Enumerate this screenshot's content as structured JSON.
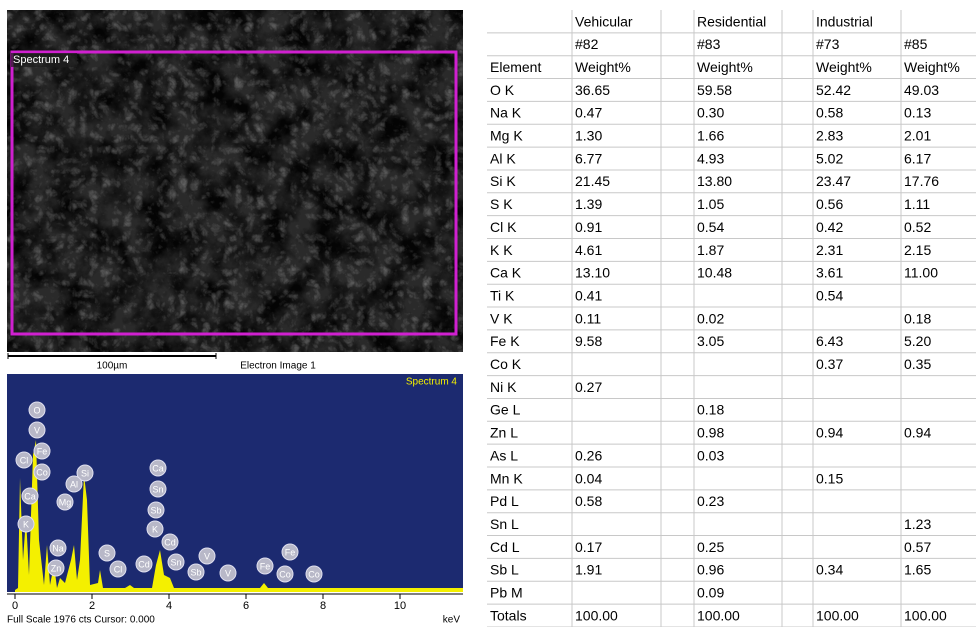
{
  "sem_image": {
    "label": "Spectrum 4",
    "scale_bar": "100µm",
    "caption": "Electron Image 1"
  },
  "spectrum": {
    "title": "Spectrum 4",
    "xticks": [
      0,
      2,
      4,
      6,
      8,
      10
    ],
    "x_unit": "keV",
    "status": "Full Scale 1976 cts Cursor: 0.000",
    "peak_labels": [
      "O",
      "V",
      "Fe",
      "Cl",
      "Co",
      "Ca",
      "Si",
      "Al",
      "K",
      "Mg",
      "Na",
      "Zn",
      "Ca",
      "Sn",
      "Sb",
      "K",
      "Cd",
      "S",
      "Cl",
      "Cd",
      "Sn",
      "Sb",
      "V",
      "V",
      "Fe",
      "Fe",
      "Co",
      "Co"
    ]
  },
  "table": {
    "element_header": "Element",
    "columns": [
      {
        "group": "Vehicular",
        "sample": "#82",
        "unit": "Weight%"
      },
      {
        "group": "Residential",
        "sample": "#83",
        "unit": "Weight%"
      },
      {
        "group": "Industrial",
        "sample": "#73",
        "unit": "Weight%"
      },
      {
        "sample": "#85",
        "unit": "Weight%"
      }
    ],
    "rows": [
      {
        "element": "O K",
        "values": [
          "36.65",
          "59.58",
          "52.42",
          "49.03"
        ]
      },
      {
        "element": "Na K",
        "values": [
          "0.47",
          "0.30",
          "0.58",
          "0.13"
        ]
      },
      {
        "element": "Mg K",
        "values": [
          "1.30",
          "1.66",
          "2.83",
          "2.01"
        ]
      },
      {
        "element": "Al K",
        "values": [
          "6.77",
          "4.93",
          "5.02",
          "6.17"
        ]
      },
      {
        "element": "Si K",
        "values": [
          "21.45",
          "13.80",
          "23.47",
          "17.76"
        ]
      },
      {
        "element": "S K",
        "values": [
          "1.39",
          "1.05",
          "0.56",
          "1.11"
        ]
      },
      {
        "element": "Cl K",
        "values": [
          "0.91",
          "0.54",
          "0.42",
          "0.52"
        ]
      },
      {
        "element": "K K",
        "values": [
          "4.61",
          "1.87",
          "2.31",
          "2.15"
        ]
      },
      {
        "element": "Ca K",
        "values": [
          "13.10",
          "10.48",
          "3.61",
          "11.00"
        ]
      },
      {
        "element": "Ti K",
        "values": [
          "0.41",
          null,
          "0.54",
          null
        ]
      },
      {
        "element": "V K",
        "values": [
          "0.11",
          "0.02",
          null,
          "0.18"
        ]
      },
      {
        "element": "Fe K",
        "values": [
          "9.58",
          "3.05",
          "6.43",
          "5.20"
        ]
      },
      {
        "element": "Co K",
        "values": [
          null,
          null,
          "0.37",
          "0.35"
        ]
      },
      {
        "element": "Ni K",
        "values": [
          "0.27",
          null,
          null,
          null
        ]
      },
      {
        "element": "Ge L",
        "values": [
          null,
          "0.18",
          null,
          null
        ]
      },
      {
        "element": "Zn L",
        "values": [
          null,
          "0.98",
          "0.94",
          "0.94"
        ]
      },
      {
        "element": "As L",
        "values": [
          "0.26",
          "0.03",
          null,
          null
        ]
      },
      {
        "element": "Mn K",
        "values": [
          "0.04",
          null,
          "0.15",
          null
        ]
      },
      {
        "element": "Pd L",
        "values": [
          "0.58",
          "0.23",
          null,
          null
        ]
      },
      {
        "element": "Sn L",
        "values": [
          null,
          null,
          null,
          "1.23"
        ]
      },
      {
        "element": "Cd L",
        "values": [
          "0.17",
          "0.25",
          null,
          "0.57"
        ]
      },
      {
        "element": "Sb L",
        "values": [
          "1.91",
          "0.96",
          "0.34",
          "1.65"
        ]
      },
      {
        "element": "Pb M",
        "values": [
          null,
          "0.09",
          null,
          null
        ]
      },
      {
        "element": "Totals",
        "values": [
          "100.00",
          "100.00",
          "100.00",
          "100.00"
        ]
      }
    ]
  }
}
